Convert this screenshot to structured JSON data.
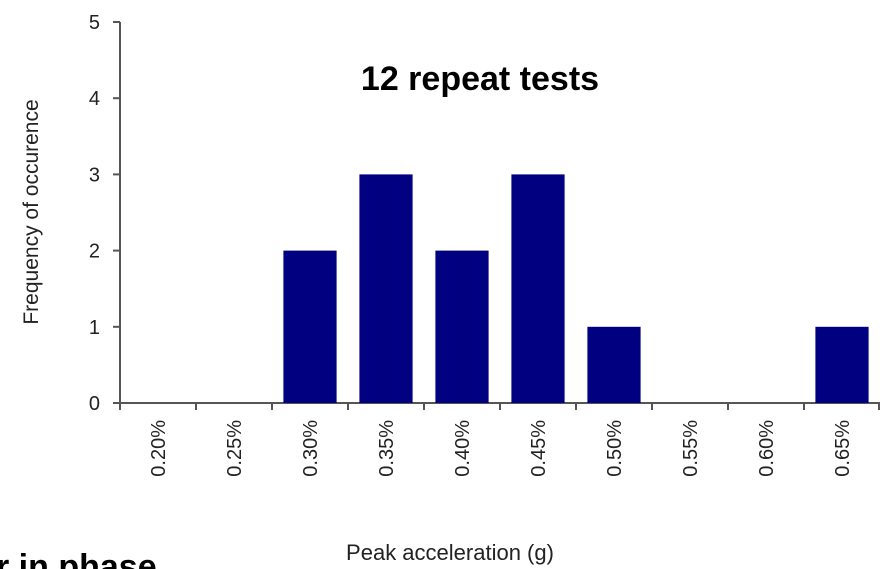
{
  "chart_data": {
    "type": "bar",
    "annotation": "12 repeat tests",
    "x_label": "Peak acceleration (g)",
    "y_label": "Frequency of occurence",
    "categories": [
      "0.20%",
      "0.25%",
      "0.30%",
      "0.35%",
      "0.40%",
      "0.45%",
      "0.50%",
      "0.55%",
      "0.60%",
      "0.65%"
    ],
    "values": [
      0,
      0,
      2,
      3,
      2,
      3,
      1,
      0,
      0,
      1
    ],
    "color": "#000080",
    "ylim": [
      0,
      5
    ],
    "yticks": [
      0,
      1,
      2,
      3,
      4,
      5
    ],
    "grid": false
  },
  "footer_text": "r in phase"
}
